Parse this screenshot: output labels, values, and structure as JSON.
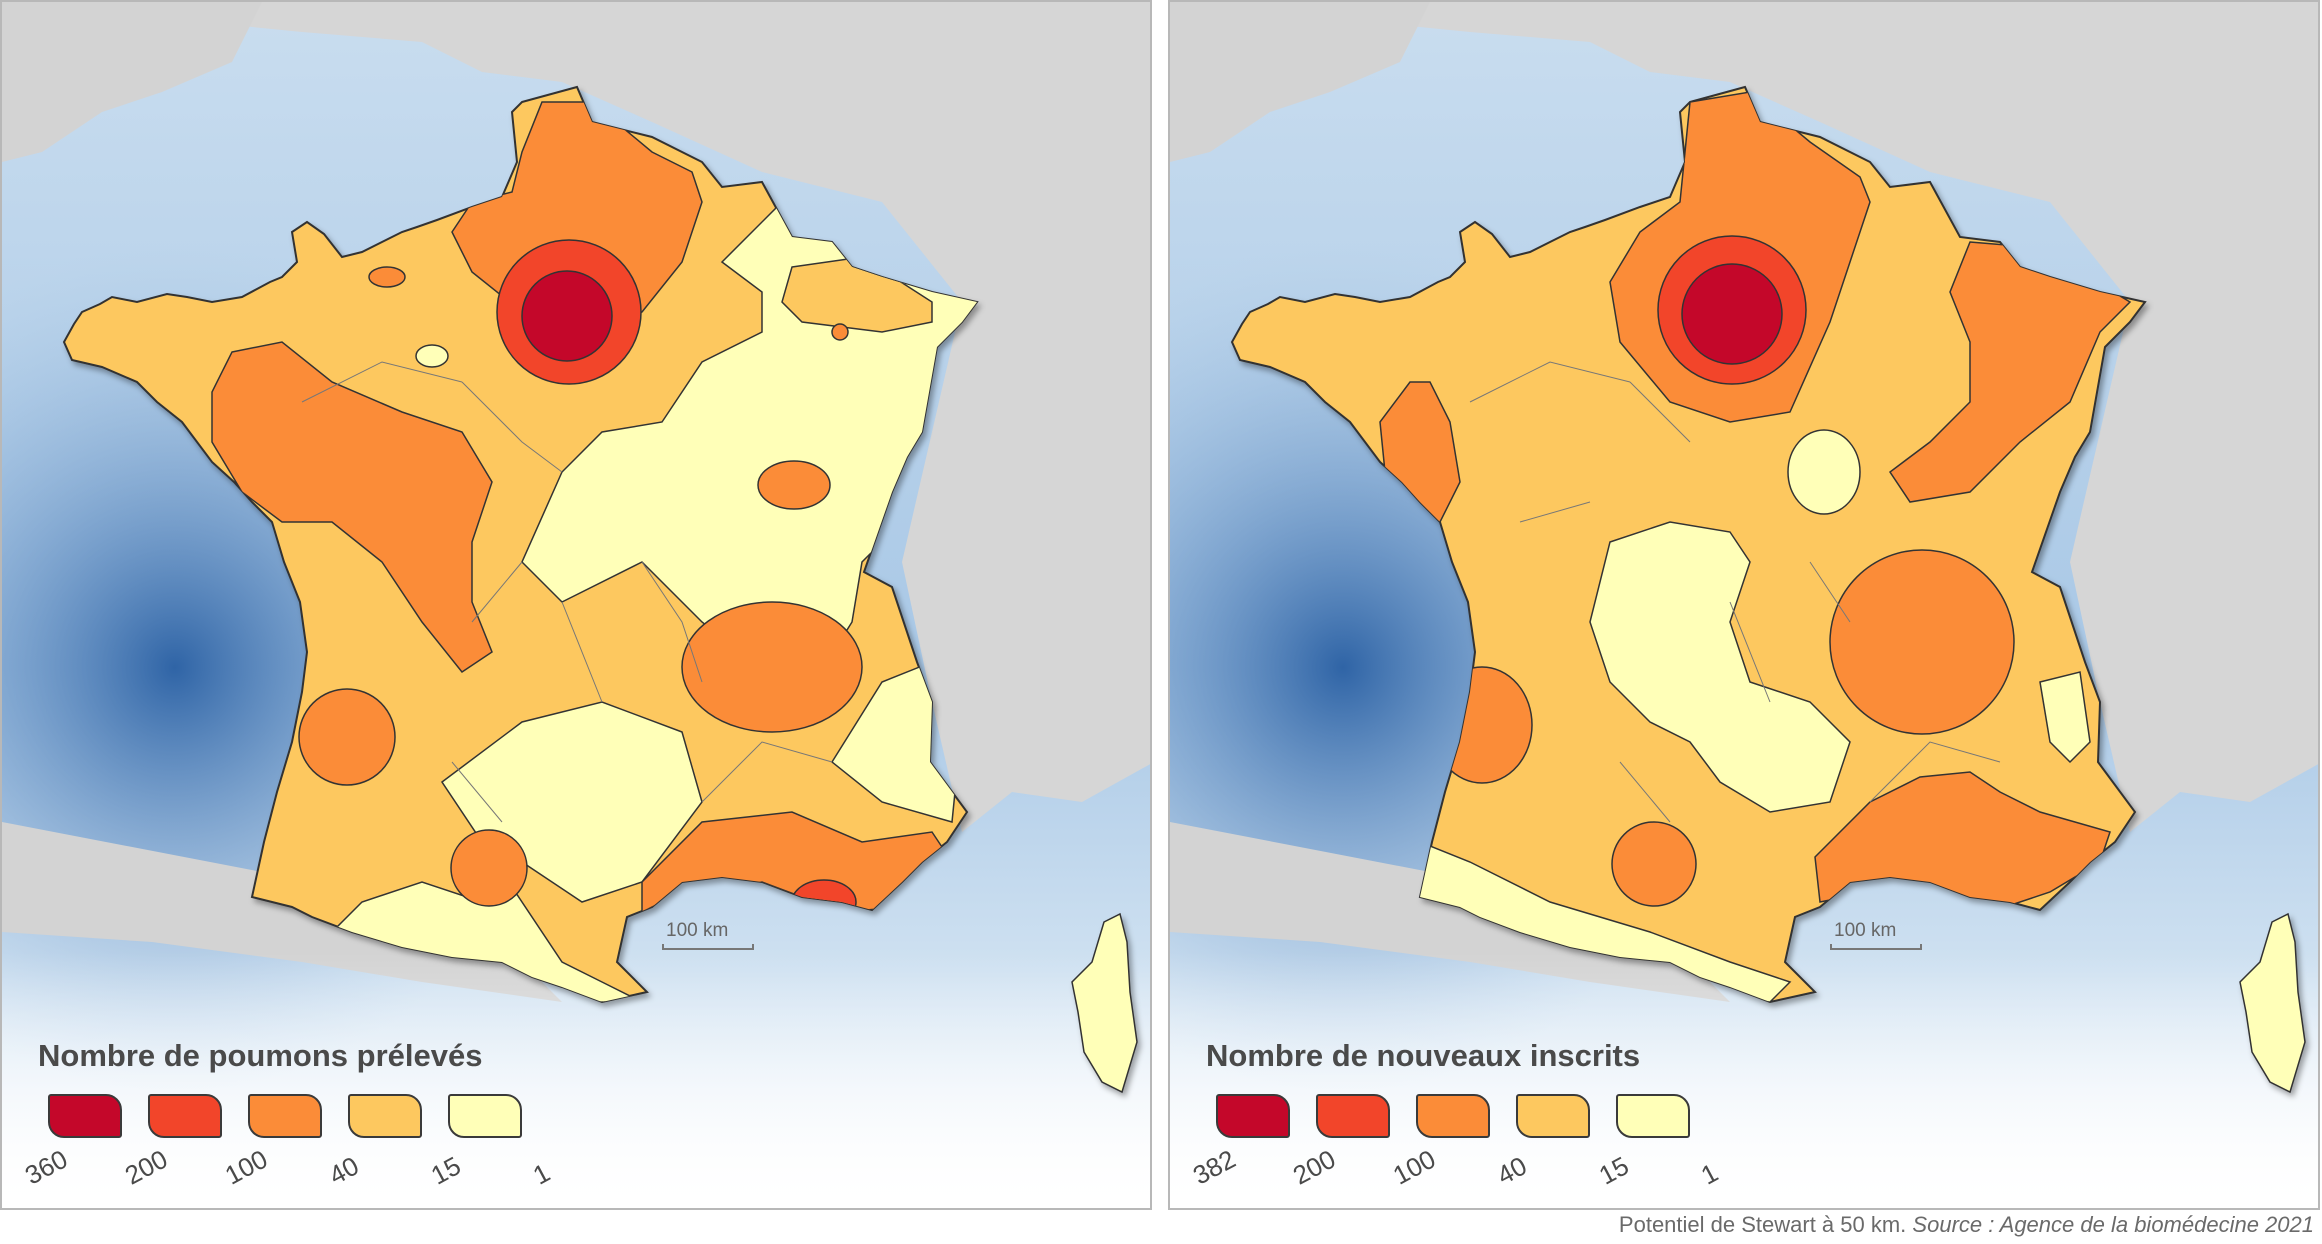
{
  "colors": {
    "sea_light": "#dbe9f5",
    "sea_deep": "#3e79b8",
    "land_grey": "#cfcfcf",
    "c1": "#ffffb8",
    "c2": "#fdc85f",
    "c3": "#fb8c38",
    "c4": "#f2452a",
    "c5": "#c4072a"
  },
  "left_map": {
    "legend_title": "Nombre de poumons prélevés",
    "legend_breaks": [
      "360",
      "200",
      "100",
      "40",
      "15",
      "1"
    ],
    "scale_label": "100 km"
  },
  "right_map": {
    "legend_title": "Nombre de nouveaux inscrits",
    "legend_breaks": [
      "382",
      "200",
      "100",
      "40",
      "15",
      "1"
    ],
    "scale_label": "100 km"
  },
  "footer": {
    "text": "Potentiel de Stewart à 50 km.",
    "source": "Source : Agence de la biomédecine 2021"
  }
}
